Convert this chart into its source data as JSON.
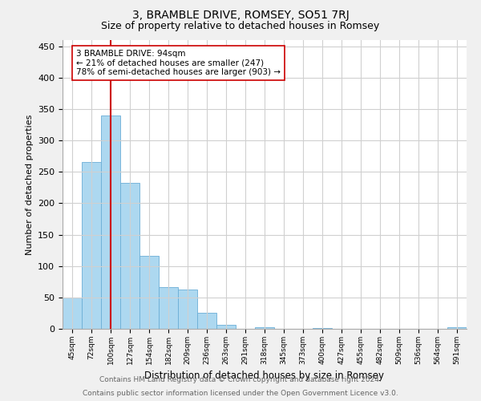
{
  "title": "3, BRAMBLE DRIVE, ROMSEY, SO51 7RJ",
  "subtitle": "Size of property relative to detached houses in Romsey",
  "xlabel": "Distribution of detached houses by size in Romsey",
  "ylabel": "Number of detached properties",
  "bar_labels": [
    "45sqm",
    "72sqm",
    "100sqm",
    "127sqm",
    "154sqm",
    "182sqm",
    "209sqm",
    "236sqm",
    "263sqm",
    "291sqm",
    "318sqm",
    "345sqm",
    "373sqm",
    "400sqm",
    "427sqm",
    "455sqm",
    "482sqm",
    "509sqm",
    "536sqm",
    "564sqm",
    "591sqm"
  ],
  "bar_values": [
    50,
    266,
    340,
    232,
    116,
    66,
    62,
    25,
    7,
    0,
    2,
    0,
    0,
    1,
    0,
    0,
    0,
    0,
    0,
    0,
    3
  ],
  "bar_color": "#add8f0",
  "bar_edge_color": "#6baed6",
  "vline_x": 2,
  "vline_color": "#cc0000",
  "annotation_text": "3 BRAMBLE DRIVE: 94sqm\n← 21% of detached houses are smaller (247)\n78% of semi-detached houses are larger (903) →",
  "annotation_box_color": "white",
  "annotation_box_edge_color": "#cc0000",
  "ylim": [
    0,
    460
  ],
  "yticks": [
    0,
    50,
    100,
    150,
    200,
    250,
    300,
    350,
    400,
    450
  ],
  "footer_line1": "Contains HM Land Registry data © Crown copyright and database right 2024.",
  "footer_line2": "Contains public sector information licensed under the Open Government Licence v3.0.",
  "background_color": "#f0f0f0",
  "plot_bg_color": "#ffffff",
  "grid_color": "#d0d0d0",
  "title_fontsize": 10,
  "subtitle_fontsize": 9
}
